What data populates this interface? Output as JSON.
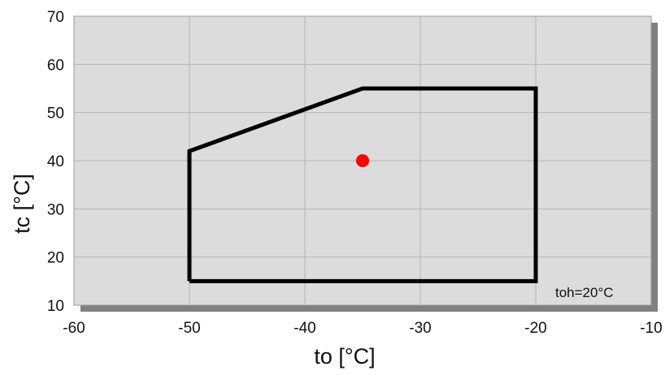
{
  "chart_data": {
    "type": "line",
    "title": "",
    "xlabel": "to [°C]",
    "ylabel": "tc [°C]",
    "xlim": [
      -60,
      -10
    ],
    "ylim": [
      10,
      70
    ],
    "xticks": [
      -60,
      -50,
      -40,
      -30,
      -20,
      -10
    ],
    "yticks": [
      10,
      20,
      30,
      40,
      50,
      60,
      70
    ],
    "grid": true,
    "background_color": "#dcdcdc",
    "envelope": {
      "x": [
        -50,
        -50,
        -35,
        -20,
        -20,
        -50
      ],
      "y": [
        15,
        42,
        55,
        55,
        15,
        15
      ],
      "color": "#000000"
    },
    "operating_point": {
      "x": -35,
      "y": 40,
      "color": "#ff0000"
    },
    "annotation": "toh=20°C"
  }
}
